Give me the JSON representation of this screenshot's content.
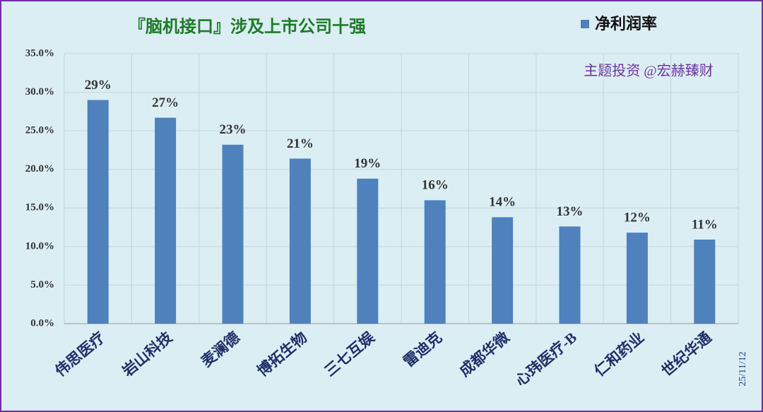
{
  "chart_data": {
    "type": "bar",
    "title": "『脑机接口』涉及上市公司十强",
    "categories": [
      "伟思医疗",
      "岩山科技",
      "麦澜德",
      "博拓生物",
      "三七互娱",
      "雷迪克",
      "成都华微",
      "心玮医疗-B",
      "仁和药业",
      "世纪华通"
    ],
    "series": [
      {
        "name": "净利润率",
        "color": "#4f81bd",
        "values": [
          29.0,
          26.7,
          23.2,
          21.4,
          18.8,
          16.0,
          13.8,
          12.6,
          11.8,
          10.9
        ],
        "value_labels": [
          "29%",
          "27%",
          "23%",
          "21%",
          "19%",
          "16%",
          "14%",
          "13%",
          "12%",
          "11%"
        ]
      }
    ],
    "ylim": [
      0,
      35
    ],
    "yticks": [
      {
        "value": 0,
        "label": "0.0%"
      },
      {
        "value": 5,
        "label": "5.0%"
      },
      {
        "value": 10,
        "label": "10.0%"
      },
      {
        "value": 15,
        "label": "15.0%"
      },
      {
        "value": 20,
        "label": "20.0%"
      },
      {
        "value": 25,
        "label": "25.0%"
      },
      {
        "value": 30,
        "label": "30.0%"
      },
      {
        "value": 35,
        "label": "35.0%"
      }
    ],
    "grid": true,
    "legend_position": "top-right",
    "watermark": "主题投资 @宏赫臻财",
    "date_label": "25/11/12"
  }
}
